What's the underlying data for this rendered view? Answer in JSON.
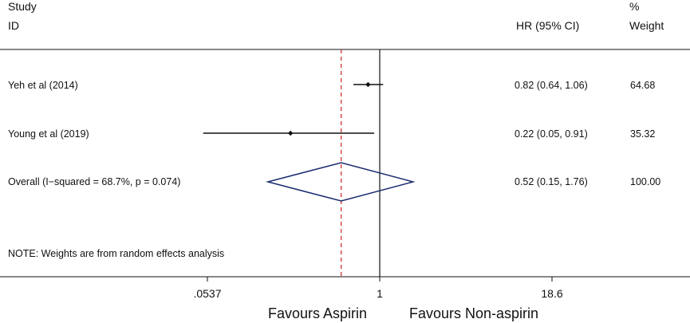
{
  "chart_data": {
    "type": "forest",
    "headers": {
      "study_line1": "Study",
      "study_line2": "ID",
      "effect": "HR (95% CI)",
      "weight_line1": "%",
      "weight_line2": "Weight"
    },
    "scale": "log",
    "xlim": [
      0.0537,
      18.6
    ],
    "null_value": 1,
    "pooled_estimate_line": 0.52,
    "ticks": [
      {
        "value": 0.0537,
        "label": ".0537"
      },
      {
        "value": 1,
        "label": "1"
      },
      {
        "value": 18.6,
        "label": "18.6"
      }
    ],
    "studies": [
      {
        "label": "Yeh et al (2014)",
        "hr": 0.82,
        "lower": 0.64,
        "upper": 1.06,
        "ci_text": "0.82 (0.64, 1.06)",
        "weight": "64.68"
      },
      {
        "label": "Young et al (2019)",
        "hr": 0.22,
        "lower": 0.05,
        "upper": 0.91,
        "ci_text": "0.22 (0.05, 0.91)",
        "weight": "35.32"
      }
    ],
    "overall": {
      "label": "Overall  (I−squared = 68.7%, p = 0.074)",
      "hr": 0.52,
      "lower": 0.15,
      "upper": 1.76,
      "ci_text": "0.52 (0.15, 1.76)",
      "weight": "100.00"
    },
    "note": "NOTE: Weights are from random effects analysis",
    "favours_left": "Favours Aspirin",
    "favours_right": "Favours Non-aspirin",
    "colors": {
      "diamond": "#1a2a6e",
      "pooled_line": "#cc2222",
      "lines": "#111111"
    }
  }
}
